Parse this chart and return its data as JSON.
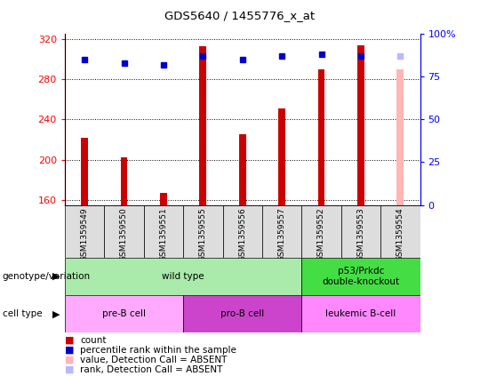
{
  "title": "GDS5640 / 1455776_x_at",
  "samples": [
    "GSM1359549",
    "GSM1359550",
    "GSM1359551",
    "GSM1359555",
    "GSM1359556",
    "GSM1359557",
    "GSM1359552",
    "GSM1359553",
    "GSM1359554"
  ],
  "counts": [
    222,
    202,
    167,
    313,
    225,
    251,
    290,
    314,
    290
  ],
  "percentile_ranks": [
    85,
    83,
    82,
    87,
    85,
    87,
    88,
    87,
    87
  ],
  "ymin": 155,
  "ymax": 325,
  "yticks": [
    160,
    200,
    240,
    280,
    320
  ],
  "right_yticks": [
    0,
    25,
    50,
    75,
    100
  ],
  "right_ytick_labels": [
    "0",
    "25",
    "50",
    "75",
    "100%"
  ],
  "absent_sample_idx": 8,
  "bar_color": "#cc0000",
  "absent_bar_color": "#ffb6b6",
  "dot_color": "#0000cc",
  "absent_dot_color": "#b8b8ff",
  "genotype_groups": [
    {
      "label": "wild type",
      "start": 0,
      "end": 6,
      "color": "#aaeaaa"
    },
    {
      "label": "p53/Prkdc\ndouble-knockout",
      "start": 6,
      "end": 9,
      "color": "#44dd44"
    }
  ],
  "cell_type_groups": [
    {
      "label": "pre-B cell",
      "start": 0,
      "end": 3,
      "color": "#ffaaff"
    },
    {
      "label": "pro-B cell",
      "start": 3,
      "end": 6,
      "color": "#cc44cc"
    },
    {
      "label": "leukemic B-cell",
      "start": 6,
      "end": 9,
      "color": "#ff88ff"
    }
  ],
  "legend_items": [
    {
      "label": "count",
      "color": "#cc0000"
    },
    {
      "label": "percentile rank within the sample",
      "color": "#0000cc"
    },
    {
      "label": "value, Detection Call = ABSENT",
      "color": "#ffb6b6"
    },
    {
      "label": "rank, Detection Call = ABSENT",
      "color": "#b8b8ff"
    }
  ]
}
